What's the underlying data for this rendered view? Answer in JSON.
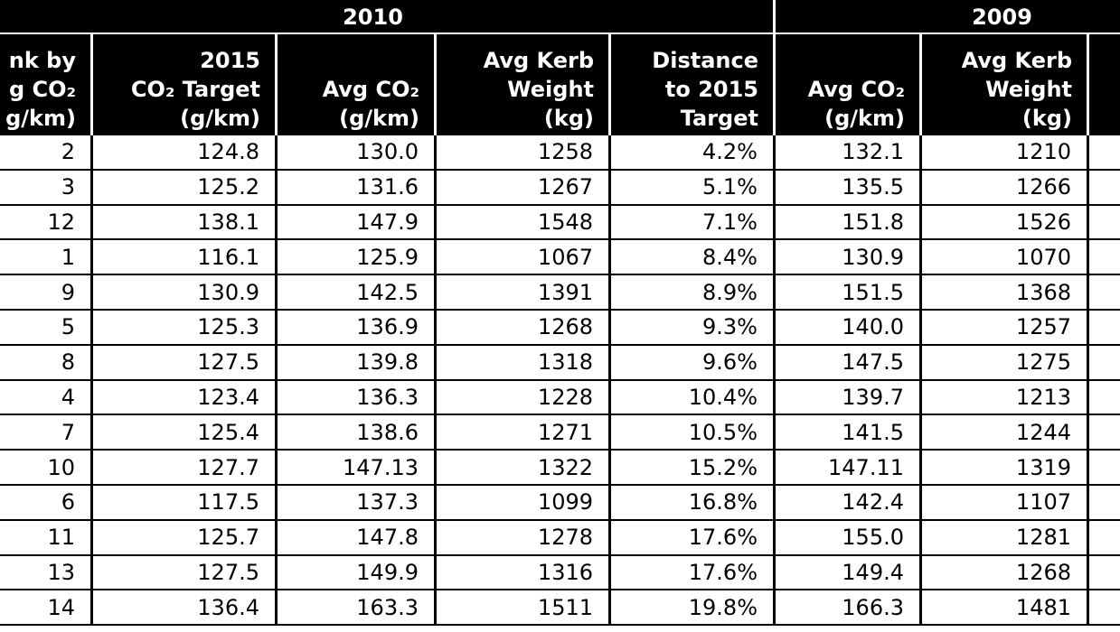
{
  "table": {
    "group_headers": [
      "2010",
      "2009"
    ],
    "headers": [
      [
        "nk by",
        "g CO₂",
        "g/km)"
      ],
      [
        "2015",
        "CO₂ Target",
        "(g/km)"
      ],
      [
        "Avg CO₂",
        "(g/km)"
      ],
      [
        "Avg Kerb",
        "Weight",
        "(kg)"
      ],
      [
        "Distance",
        "to 2015",
        "Target"
      ],
      [
        "Avg CO₂",
        "(g/km)"
      ],
      [
        "Avg Kerb",
        "Weight",
        "(kg)"
      ]
    ],
    "rows": [
      [
        "2",
        "124.8",
        "130.0",
        "1258",
        "4.2%",
        "132.1",
        "1210"
      ],
      [
        "3",
        "125.2",
        "131.6",
        "1267",
        "5.1%",
        "135.5",
        "1266"
      ],
      [
        "12",
        "138.1",
        "147.9",
        "1548",
        "7.1%",
        "151.8",
        "1526"
      ],
      [
        "1",
        "116.1",
        "125.9",
        "1067",
        "8.4%",
        "130.9",
        "1070"
      ],
      [
        "9",
        "130.9",
        "142.5",
        "1391",
        "8.9%",
        "151.5",
        "1368"
      ],
      [
        "5",
        "125.3",
        "136.9",
        "1268",
        "9.3%",
        "140.0",
        "1257"
      ],
      [
        "8",
        "127.5",
        "139.8",
        "1318",
        "9.6%",
        "147.5",
        "1275"
      ],
      [
        "4",
        "123.4",
        "136.3",
        "1228",
        "10.4%",
        "139.7",
        "1213"
      ],
      [
        "7",
        "125.4",
        "138.6",
        "1271",
        "10.5%",
        "141.5",
        "1244"
      ],
      [
        "10",
        "127.7",
        "147.13",
        "1322",
        "15.2%",
        "147.11",
        "1319"
      ],
      [
        "6",
        "117.5",
        "137.3",
        "1099",
        "16.8%",
        "142.4",
        "1107"
      ],
      [
        "11",
        "125.7",
        "147.8",
        "1278",
        "17.6%",
        "155.0",
        "1281"
      ],
      [
        "13",
        "127.5",
        "149.9",
        "1316",
        "17.6%",
        "149.4",
        "1268"
      ],
      [
        "14",
        "136.4",
        "163.3",
        "1511",
        "19.8%",
        "166.3",
        "1481"
      ]
    ]
  }
}
